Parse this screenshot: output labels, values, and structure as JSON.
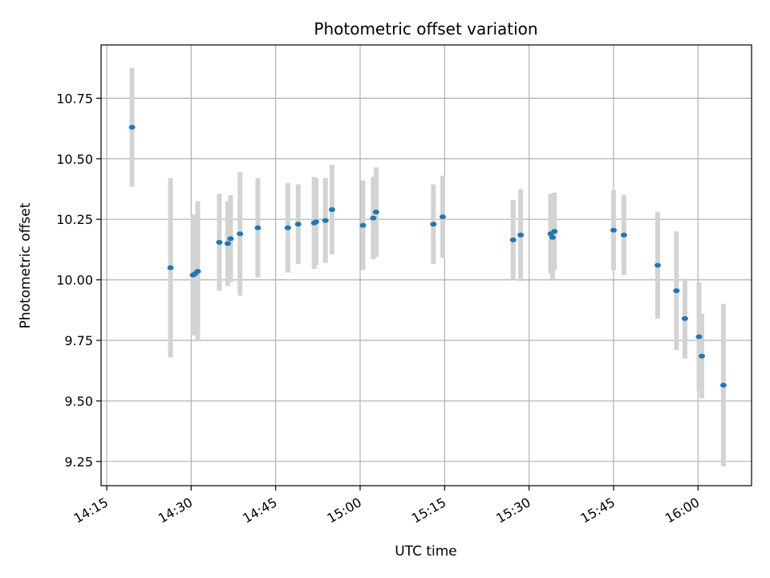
{
  "chart_data": {
    "type": "scatter",
    "title": "Photometric offset variation",
    "xlabel": "UTC time",
    "ylabel": "Photometric offset",
    "xlim": [
      "14:14:00",
      "16:09:30"
    ],
    "ylim": [
      9.15,
      10.97
    ],
    "grid": true,
    "x_ticks": [
      "14:15",
      "14:30",
      "14:45",
      "15:00",
      "15:15",
      "15:30",
      "15:45",
      "16:00"
    ],
    "y_ticks": [
      "9.25",
      "9.50",
      "9.75",
      "10.00",
      "10.25",
      "10.50",
      "10.75"
    ],
    "colors": {
      "point": "#1f77b4",
      "errorbar": "#d3d3d3",
      "grid": "#b0b0b0",
      "axes": "#000000"
    },
    "points": [
      {
        "x": "14:19:30",
        "y": 10.63,
        "err": 0.245
      },
      {
        "x": "14:26:20",
        "y": 10.05,
        "err": 0.37
      },
      {
        "x": "14:30:20",
        "y": 10.02,
        "err": 0.25
      },
      {
        "x": "14:30:40",
        "y": 10.025,
        "err": 0.24
      },
      {
        "x": "14:31:10",
        "y": 10.035,
        "err": 0.29
      },
      {
        "x": "14:35:00",
        "y": 10.155,
        "err": 0.2
      },
      {
        "x": "14:36:30",
        "y": 10.15,
        "err": 0.175
      },
      {
        "x": "14:37:00",
        "y": 10.17,
        "err": 0.18
      },
      {
        "x": "14:38:40",
        "y": 10.19,
        "err": 0.255
      },
      {
        "x": "14:41:50",
        "y": 10.215,
        "err": 0.205
      },
      {
        "x": "14:47:10",
        "y": 10.215,
        "err": 0.185
      },
      {
        "x": "14:49:00",
        "y": 10.23,
        "err": 0.165
      },
      {
        "x": "14:51:50",
        "y": 10.235,
        "err": 0.19
      },
      {
        "x": "14:52:10",
        "y": 10.24,
        "err": 0.18
      },
      {
        "x": "14:53:50",
        "y": 10.245,
        "err": 0.175
      },
      {
        "x": "14:55:00",
        "y": 10.29,
        "err": 0.185
      },
      {
        "x": "15:00:30",
        "y": 10.225,
        "err": 0.185
      },
      {
        "x": "15:02:20",
        "y": 10.255,
        "err": 0.17
      },
      {
        "x": "15:02:50",
        "y": 10.28,
        "err": 0.185
      },
      {
        "x": "15:13:00",
        "y": 10.23,
        "err": 0.165
      },
      {
        "x": "15:14:40",
        "y": 10.26,
        "err": 0.17
      },
      {
        "x": "15:27:10",
        "y": 10.165,
        "err": 0.165
      },
      {
        "x": "15:28:30",
        "y": 10.185,
        "err": 0.19
      },
      {
        "x": "15:33:50",
        "y": 10.19,
        "err": 0.165
      },
      {
        "x": "15:34:10",
        "y": 10.175,
        "err": 0.175
      },
      {
        "x": "15:34:30",
        "y": 10.2,
        "err": 0.16
      },
      {
        "x": "15:45:00",
        "y": 10.205,
        "err": 0.165
      },
      {
        "x": "15:46:50",
        "y": 10.185,
        "err": 0.165
      },
      {
        "x": "15:52:50",
        "y": 10.06,
        "err": 0.22
      },
      {
        "x": "15:56:10",
        "y": 9.955,
        "err": 0.245
      },
      {
        "x": "15:57:40",
        "y": 9.84,
        "err": 0.165
      },
      {
        "x": "16:00:10",
        "y": 9.765,
        "err": 0.225
      },
      {
        "x": "16:00:40",
        "y": 9.685,
        "err": 0.175
      },
      {
        "x": "16:04:30",
        "y": 9.565,
        "err": 0.335
      }
    ]
  }
}
